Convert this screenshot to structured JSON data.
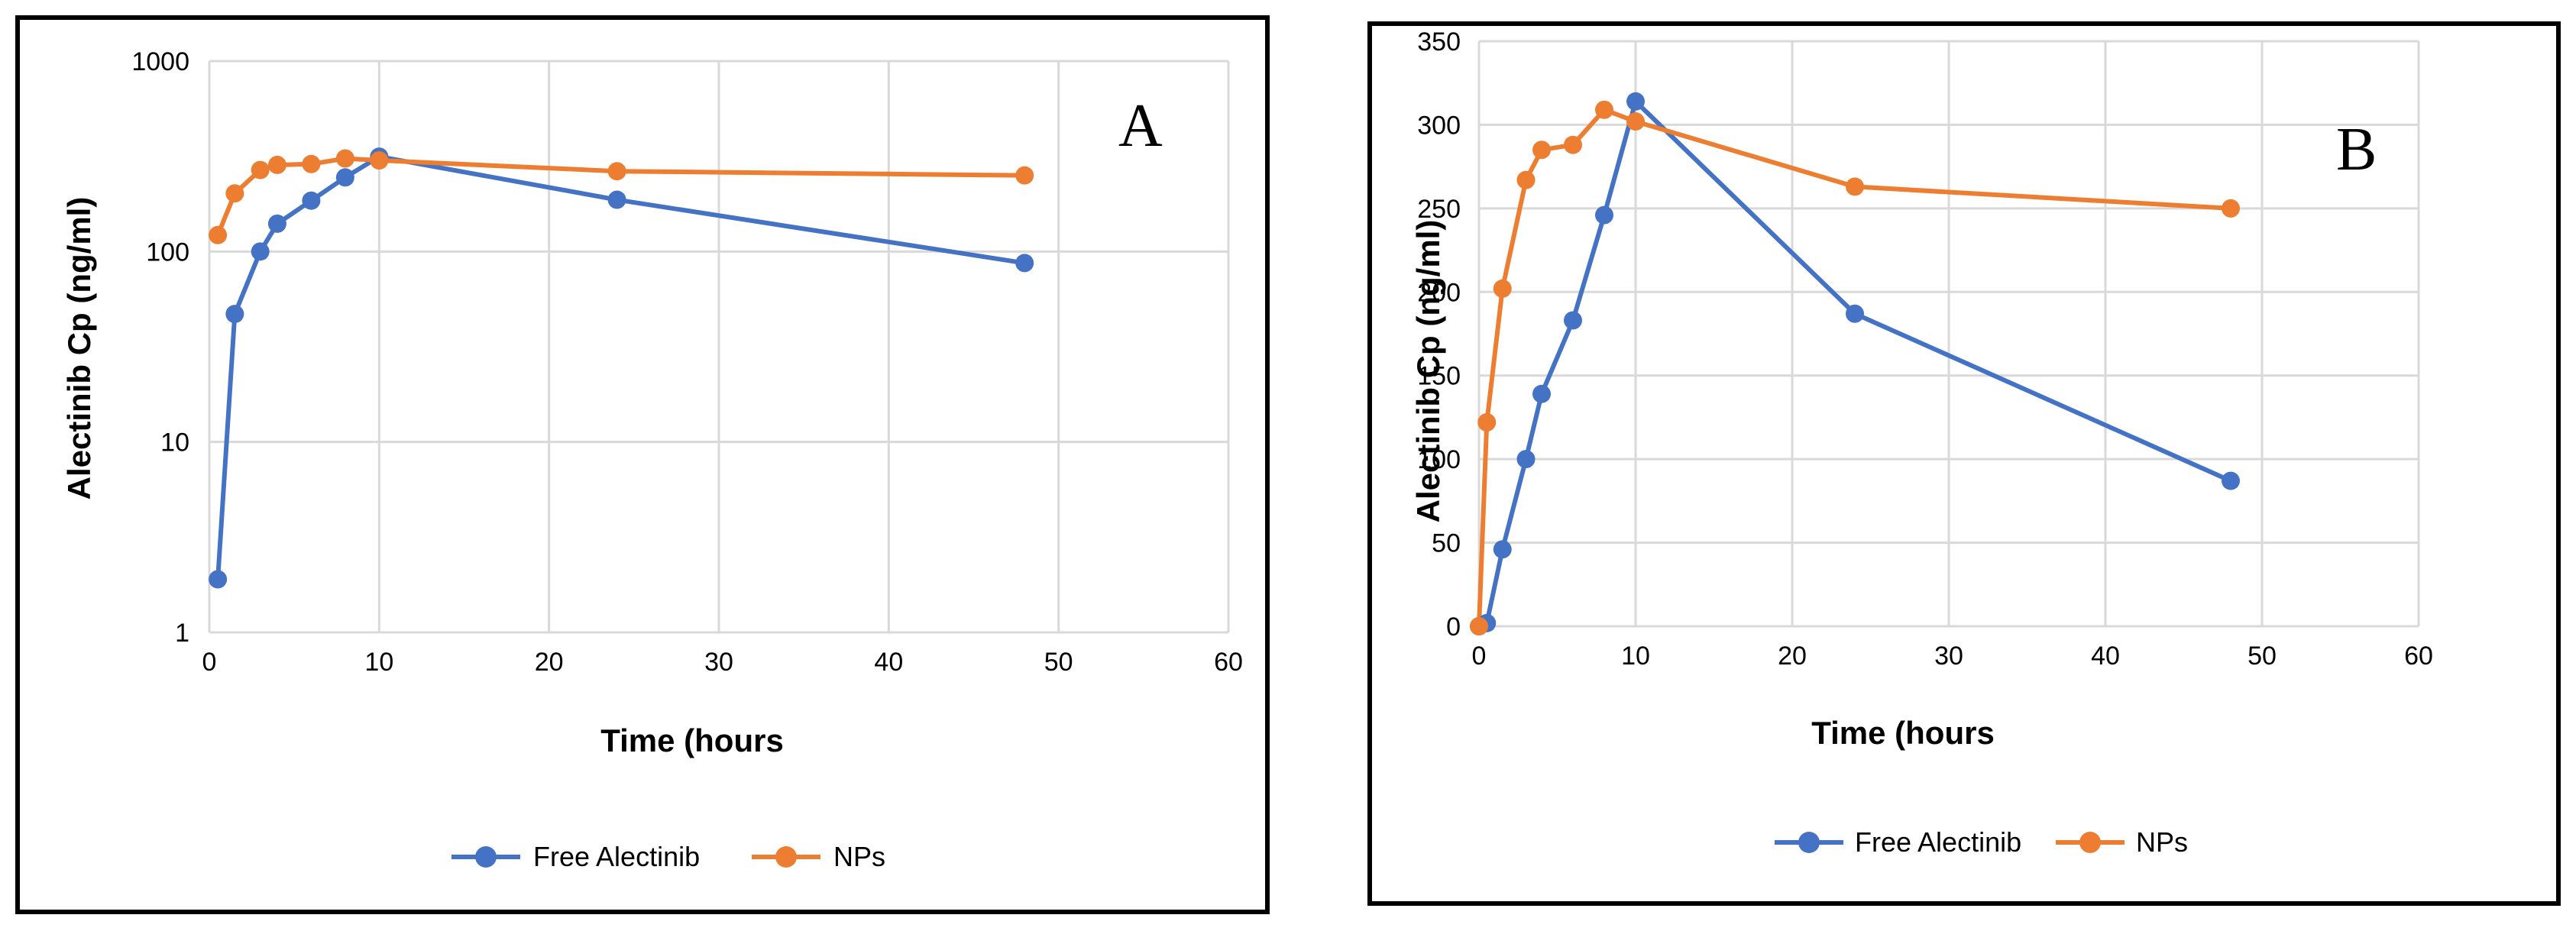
{
  "chart_data": [
    {
      "type": "line",
      "panel_label": "A",
      "yscale": "log",
      "xlabel": "Time (hours",
      "ylabel": "Alectinib Cp (ng/ml)",
      "xlim": [
        0,
        60
      ],
      "ylim": [
        1,
        1000
      ],
      "xticks": [
        "0",
        "10",
        "20",
        "30",
        "40",
        "50",
        "60"
      ],
      "yticks": [
        "1",
        "10",
        "100",
        "1000"
      ],
      "grid": true,
      "legend": "bottom",
      "series": [
        {
          "name": "Free Alectinib",
          "color": "#4472c4",
          "x": [
            0.5,
            1.5,
            3,
            4,
            6,
            8,
            10,
            24,
            48
          ],
          "y": [
            1.9,
            47,
            100,
            140,
            185,
            245,
            315,
            187,
            87
          ]
        },
        {
          "name": "NPs",
          "color": "#ed7d31",
          "x": [
            0.5,
            1.5,
            3,
            4,
            6,
            8,
            10,
            24,
            48
          ],
          "y": [
            122,
            202,
            268,
            285,
            288,
            308,
            301,
            264,
            251
          ]
        }
      ]
    },
    {
      "type": "line",
      "panel_label": "B",
      "yscale": "linear",
      "xlabel": "Time (hours",
      "ylabel": "Alectinib Cp (ng/ml)",
      "xlim": [
        0,
        60
      ],
      "ylim": [
        0,
        350
      ],
      "xticks": [
        "0",
        "10",
        "20",
        "30",
        "40",
        "50",
        "60"
      ],
      "yticks": [
        "0",
        "50",
        "100",
        "150",
        "200",
        "250",
        "300",
        "350"
      ],
      "grid": true,
      "legend": "bottom",
      "series": [
        {
          "name": "Free Alectinib",
          "color": "#4472c4",
          "x": [
            0,
            0.5,
            1.5,
            3,
            4,
            6,
            8,
            10,
            24,
            48
          ],
          "y": [
            0,
            1.9,
            46,
            100,
            139,
            183,
            246,
            314,
            187,
            87
          ]
        },
        {
          "name": "NPs",
          "color": "#ed7d31",
          "x": [
            0,
            0.5,
            1.5,
            3,
            4,
            6,
            8,
            10,
            24,
            48
          ],
          "y": [
            0,
            122,
            202,
            267,
            285,
            288,
            309,
            302,
            263,
            250
          ]
        }
      ]
    }
  ]
}
